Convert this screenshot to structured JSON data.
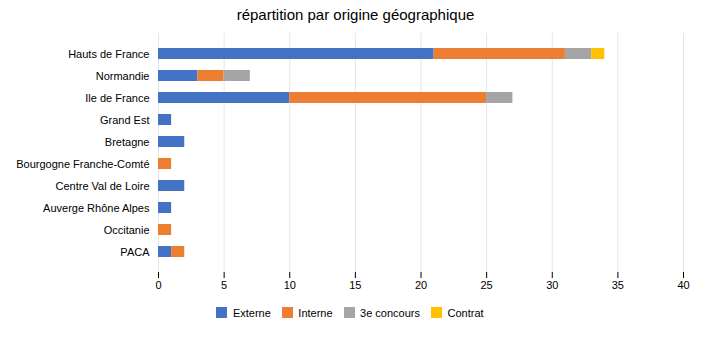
{
  "chart_data": {
    "type": "bar",
    "orientation": "horizontal",
    "stacked": true,
    "title": "répartition par origine géographique",
    "categories": [
      "Hauts de France",
      "Normandie",
      "Ile de France",
      "Grand Est",
      "Bretagne",
      "Bourgogne Franche-Comté",
      "Centre Val de Loire",
      "Auverge Rhône Alpes",
      "Occitanie",
      "PACA"
    ],
    "series": [
      {
        "name": "Externe",
        "color": "#4472c4",
        "values": [
          21,
          3,
          10,
          1,
          2,
          0,
          2,
          1,
          0,
          1
        ]
      },
      {
        "name": "Interne",
        "color": "#ed7d31",
        "values": [
          10,
          2,
          15,
          0,
          0,
          1,
          0,
          0,
          1,
          1
        ]
      },
      {
        "name": "3e concours",
        "color": "#a5a5a5",
        "values": [
          2,
          2,
          2,
          0,
          0,
          0,
          0,
          0,
          0,
          0
        ]
      },
      {
        "name": "Contrat",
        "color": "#ffc000",
        "values": [
          1,
          0,
          0,
          0,
          0,
          0,
          0,
          0,
          0,
          0
        ]
      }
    ],
    "xlim": [
      0,
      40
    ],
    "xticks": [
      0,
      5,
      10,
      15,
      20,
      25,
      30,
      35,
      40
    ],
    "grid": true,
    "legend": "bottom"
  }
}
